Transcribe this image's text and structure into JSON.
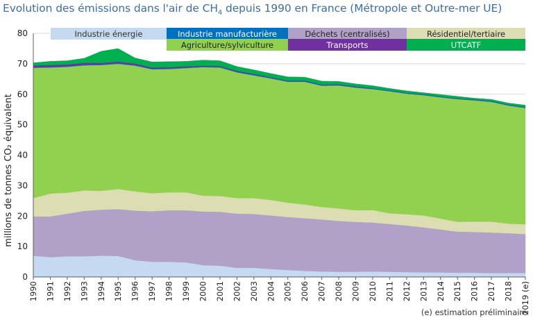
{
  "title": {
    "before_sub": "Evolution des émissions dans l'air de CH",
    "sub": "4",
    "after_sub": " depuis 1990 en France (Métropole et Outre-mer UE)"
  },
  "note": "(e) estimation préliminaire",
  "chart_data": {
    "type": "area",
    "stacked": true,
    "ylabel": "millions de tonnes CO₂ équivalent",
    "ylim": [
      0,
      80
    ],
    "yticks": [
      0,
      10,
      20,
      30,
      40,
      50,
      60,
      70,
      80
    ],
    "categories": [
      "1990",
      "1991",
      "1992",
      "1993",
      "1994",
      "1995",
      "1996",
      "1997",
      "1998",
      "1999",
      "2000",
      "2001",
      "2002",
      "2003",
      "2004",
      "2005",
      "2006",
      "2007",
      "2008",
      "2009",
      "2010",
      "2011",
      "2012",
      "2013",
      "2014",
      "2015",
      "2016",
      "2017",
      "2018",
      "2019 (e)"
    ],
    "series": [
      {
        "name": "Industrie énergie",
        "color": "#c5d9f1",
        "text_color": "#333333",
        "values": [
          7.0,
          6.5,
          6.8,
          6.8,
          7.0,
          6.9,
          5.5,
          5.0,
          5.0,
          4.8,
          3.9,
          3.7,
          3.0,
          3.0,
          2.6,
          2.3,
          2.0,
          1.8,
          1.7,
          1.7,
          1.8,
          1.7,
          1.6,
          1.5,
          1.5,
          1.4,
          1.4,
          1.3,
          1.3,
          1.3
        ]
      },
      {
        "name": "Déchets (centralisés)",
        "color": "#b1a0c7",
        "text_color": "#222222",
        "values": [
          12.9,
          13.4,
          14.0,
          14.9,
          15.1,
          15.4,
          16.3,
          16.6,
          16.9,
          17.1,
          17.6,
          17.7,
          17.8,
          17.7,
          17.6,
          17.4,
          17.3,
          17.1,
          16.7,
          16.4,
          16.1,
          15.7,
          15.3,
          14.8,
          14.1,
          13.5,
          13.4,
          13.3,
          13.1,
          12.8
        ]
      },
      {
        "name": "Résidentiel/tertiaire",
        "color": "#ddddb3",
        "text_color": "#222222",
        "values": [
          6.0,
          7.5,
          6.9,
          6.7,
          6.2,
          6.6,
          6.3,
          5.9,
          5.9,
          5.9,
          5.2,
          5.2,
          5.1,
          5.2,
          5.1,
          4.7,
          4.5,
          4.1,
          4.1,
          3.8,
          4.1,
          3.5,
          3.7,
          3.9,
          3.6,
          3.2,
          3.4,
          3.6,
          3.1,
          3.2
        ]
      },
      {
        "name": "Agriculture/sylviculture",
        "color": "#92d050",
        "text_color": "#222222",
        "values": [
          42.8,
          41.4,
          41.3,
          41.1,
          41.3,
          41.1,
          41.3,
          40.7,
          40.5,
          40.8,
          42.2,
          42.2,
          41.3,
          40.3,
          39.9,
          39.7,
          40.3,
          39.8,
          40.4,
          40.3,
          39.7,
          40.1,
          39.6,
          39.5,
          39.8,
          40.3,
          39.8,
          39.3,
          38.8,
          38.2
        ]
      },
      {
        "name": "Industrie manufacturière",
        "color": "#0070c0",
        "text_color": "#ffffff",
        "values": [
          0.2,
          0.2,
          0.2,
          0.2,
          0.2,
          0.2,
          0.2,
          0.2,
          0.2,
          0.2,
          0.2,
          0.2,
          0.2,
          0.2,
          0.2,
          0.2,
          0.2,
          0.2,
          0.2,
          0.2,
          0.2,
          0.2,
          0.2,
          0.2,
          0.2,
          0.2,
          0.2,
          0.2,
          0.2,
          0.2
        ]
      },
      {
        "name": "Transports",
        "color": "#7030a0",
        "text_color": "#ffffff",
        "values": [
          0.6,
          0.6,
          0.6,
          0.6,
          0.5,
          0.5,
          0.5,
          0.4,
          0.4,
          0.4,
          0.3,
          0.3,
          0.3,
          0.3,
          0.2,
          0.2,
          0.2,
          0.2,
          0.2,
          0.2,
          0.1,
          0.1,
          0.1,
          0.1,
          0.1,
          0.1,
          0.1,
          0.1,
          0.1,
          0.1
        ]
      },
      {
        "name": "UTCATF",
        "color": "#00b050",
        "text_color": "#ffffff",
        "values": [
          0.8,
          1.2,
          1.2,
          1.5,
          3.8,
          4.3,
          1.8,
          1.8,
          1.8,
          1.6,
          1.8,
          1.7,
          1.4,
          1.3,
          1.2,
          1.2,
          1.1,
          1.1,
          0.9,
          0.8,
          0.8,
          0.6,
          0.6,
          0.5,
          0.6,
          0.6,
          0.4,
          0.5,
          0.5,
          0.6
        ]
      }
    ]
  }
}
